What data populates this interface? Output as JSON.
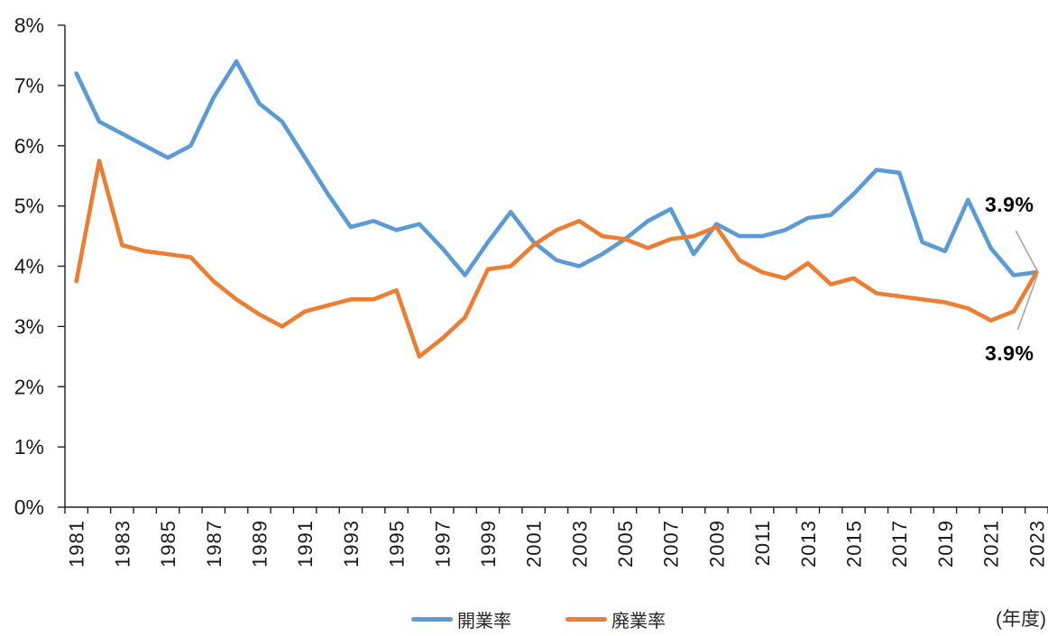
{
  "chart_data": {
    "type": "line",
    "x": [
      1981,
      1982,
      1983,
      1984,
      1985,
      1986,
      1987,
      1988,
      1989,
      1990,
      1991,
      1992,
      1993,
      1994,
      1995,
      1996,
      1997,
      1998,
      1999,
      2000,
      2001,
      2002,
      2003,
      2004,
      2005,
      2006,
      2007,
      2008,
      2009,
      2010,
      2011,
      2012,
      2013,
      2014,
      2015,
      2016,
      2017,
      2018,
      2019,
      2020,
      2021,
      2022,
      2023
    ],
    "x_unit_label": "(年度)",
    "ylim": [
      0,
      8
    ],
    "ytick_labels": [
      "0%",
      "1%",
      "2%",
      "3%",
      "4%",
      "5%",
      "6%",
      "7%",
      "8%"
    ],
    "xtick_labels": [
      "1981",
      "1983",
      "1985",
      "1987",
      "1989",
      "1991",
      "1993",
      "1995",
      "1997",
      "1999",
      "2001",
      "2003",
      "2005",
      "2007",
      "2009",
      "2011",
      "2013",
      "2015",
      "2017",
      "2019",
      "2021",
      "2023"
    ],
    "grid": false,
    "legend_position": "bottom",
    "series": [
      {
        "name": "開業率",
        "color": "#5B9BD5",
        "values": [
          7.2,
          6.4,
          6.2,
          6.0,
          5.8,
          6.0,
          6.8,
          7.4,
          6.7,
          6.4,
          5.8,
          5.2,
          4.65,
          4.75,
          4.6,
          4.7,
          4.3,
          3.85,
          4.4,
          4.9,
          4.4,
          4.1,
          4.0,
          4.2,
          4.45,
          4.75,
          4.95,
          4.2,
          4.7,
          4.5,
          4.5,
          4.6,
          4.8,
          4.85,
          5.2,
          5.6,
          5.55,
          4.4,
          4.25,
          5.1,
          4.3,
          3.85,
          3.9
        ]
      },
      {
        "name": "廃業率",
        "color": "#ED7D31",
        "values": [
          3.75,
          5.75,
          4.35,
          4.25,
          4.2,
          4.15,
          3.75,
          3.45,
          3.2,
          3.0,
          3.25,
          3.35,
          3.45,
          3.45,
          3.6,
          2.5,
          2.8,
          3.15,
          3.95,
          4.0,
          4.35,
          4.6,
          4.75,
          4.5,
          4.45,
          4.3,
          4.45,
          4.5,
          4.65,
          4.1,
          3.9,
          3.8,
          4.05,
          3.7,
          3.8,
          3.55,
          3.5,
          3.45,
          3.4,
          3.3,
          3.1,
          3.25,
          3.9
        ]
      }
    ],
    "annotations": [
      {
        "text": "3.9%",
        "series": "開業率",
        "x": 2023,
        "value": 3.9
      },
      {
        "text": "3.9%",
        "series": "廃業率",
        "x": 2023,
        "value": 3.9
      }
    ],
    "leader_line_color": "#A6A6A6",
    "axis_color": "#1f1f1f",
    "tick_label_color": "#1a1a1a"
  }
}
